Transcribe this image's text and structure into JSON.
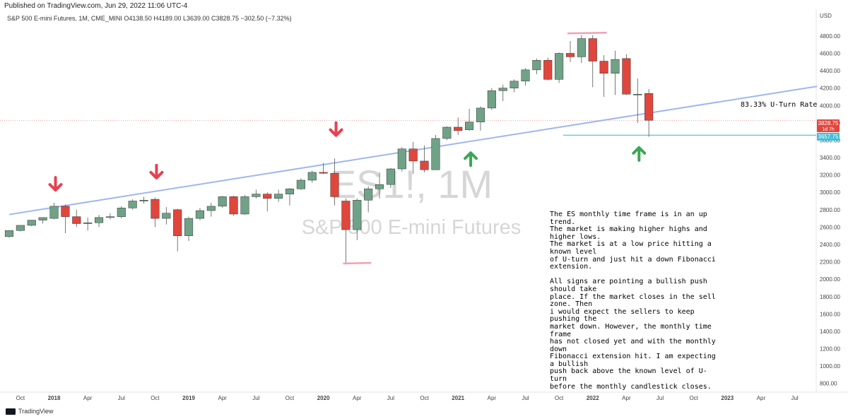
{
  "header": {
    "published": "Published on TradingView.com, Jun 29, 2022 11:06 UTC-4",
    "symbol_line": "S&P 500 E-mini Futures, 1M, CME_MINI  O4138.50  H4189.00  L3639.00  C3828.75  −302.50 (−7.32%)"
  },
  "footer": {
    "brand": "TradingView"
  },
  "watermark": {
    "ticker": "ES1!, 1M",
    "name": "S&P 500 E-mini Futures"
  },
  "annotation": {
    "uturn_label": "83.33% U-Turn Rate",
    "text": "The ES monthly time frame is in an up trend.\nThe market is making higher highs and higher lows.\nThe market is at a low price hitting a known level\nof U-turn and just hit a down Fibonacci extension.\n\nAll signs are pointing a bullish push should take\nplace. If the market closes in the sell zone. Then\ni would expect the sellers to keep pushing the\nmarket down. However, the monthly time frame\nhas not closed yet and with the monthly down\nFibonacci extension hit. I am expecting a bullish\npush back above the known level of U-turn\nbefore the monthly candlestick closes."
  },
  "price_tags": {
    "last": "3828.75",
    "countdown": "1d 7h",
    "level": "3657.75"
  },
  "colors": {
    "up": "#6fa287",
    "down": "#e0463c",
    "trendline": "#9fb6f0",
    "level_line": "#3fbfd9",
    "arrow_down": "#e8404f",
    "arrow_up": "#3aa655",
    "marker": "#f2a0b4"
  },
  "chart_data": {
    "type": "candlestick",
    "title": "S&P 500 E-mini Futures, 1M, CME_MINI",
    "ylabel": "USD",
    "ylim": [
      700,
      5100
    ],
    "y_ticks": [
      800,
      1000,
      1200,
      1400,
      1600,
      1800,
      2000,
      2200,
      2400,
      2600,
      2800,
      3000,
      3200,
      3400,
      3600,
      3800,
      4000,
      4200,
      4400,
      4600,
      4800
    ],
    "x_ticks": [
      {
        "label": "Oct",
        "date": "2017-10",
        "bold": false
      },
      {
        "label": "2018",
        "date": "2018-01",
        "bold": true
      },
      {
        "label": "Apr",
        "date": "2018-04",
        "bold": false
      },
      {
        "label": "Jul",
        "date": "2018-07",
        "bold": false
      },
      {
        "label": "Oct",
        "date": "2018-10",
        "bold": false
      },
      {
        "label": "2019",
        "date": "2019-01",
        "bold": true
      },
      {
        "label": "Apr",
        "date": "2019-04",
        "bold": false
      },
      {
        "label": "Jul",
        "date": "2019-07",
        "bold": false
      },
      {
        "label": "Oct",
        "date": "2019-10",
        "bold": false
      },
      {
        "label": "2020",
        "date": "2020-01",
        "bold": true
      },
      {
        "label": "Apr",
        "date": "2020-04",
        "bold": false
      },
      {
        "label": "Jul",
        "date": "2020-07",
        "bold": false
      },
      {
        "label": "Oct",
        "date": "2020-10",
        "bold": false
      },
      {
        "label": "2021",
        "date": "2021-01",
        "bold": true
      },
      {
        "label": "Apr",
        "date": "2021-04",
        "bold": false
      },
      {
        "label": "Jul",
        "date": "2021-07",
        "bold": false
      },
      {
        "label": "Oct",
        "date": "2021-10",
        "bold": false
      },
      {
        "label": "2022",
        "date": "2022-01",
        "bold": true
      },
      {
        "label": "Apr",
        "date": "2022-04",
        "bold": false
      },
      {
        "label": "Jul",
        "date": "2022-07",
        "bold": false
      },
      {
        "label": "Oct",
        "date": "2022-10",
        "bold": false
      },
      {
        "label": "2023",
        "date": "2023-01",
        "bold": true
      },
      {
        "label": "Apr",
        "date": "2023-04",
        "bold": false
      },
      {
        "label": "Jul",
        "date": "2023-07",
        "bold": false
      }
    ],
    "candles": [
      {
        "date": "2017-09",
        "o": 2490,
        "h": 2520,
        "l": 2480,
        "c": 2560
      },
      {
        "date": "2017-10",
        "o": 2560,
        "h": 2580,
        "l": 2550,
        "c": 2620
      },
      {
        "date": "2017-11",
        "o": 2620,
        "h": 2660,
        "l": 2610,
        "c": 2680
      },
      {
        "date": "2017-12",
        "o": 2680,
        "h": 2700,
        "l": 2640,
        "c": 2710
      },
      {
        "date": "2018-01",
        "o": 2700,
        "h": 2880,
        "l": 2690,
        "c": 2840
      },
      {
        "date": "2018-02",
        "o": 2840,
        "h": 2860,
        "l": 2530,
        "c": 2720
      },
      {
        "date": "2018-03",
        "o": 2720,
        "h": 2800,
        "l": 2600,
        "c": 2640
      },
      {
        "date": "2018-04",
        "o": 2640,
        "h": 2710,
        "l": 2560,
        "c": 2650
      },
      {
        "date": "2018-05",
        "o": 2650,
        "h": 2740,
        "l": 2600,
        "c": 2710
      },
      {
        "date": "2018-06",
        "o": 2710,
        "h": 2760,
        "l": 2690,
        "c": 2720
      },
      {
        "date": "2018-07",
        "o": 2720,
        "h": 2840,
        "l": 2700,
        "c": 2820
      },
      {
        "date": "2018-08",
        "o": 2820,
        "h": 2920,
        "l": 2800,
        "c": 2900
      },
      {
        "date": "2018-09",
        "o": 2900,
        "h": 2950,
        "l": 2870,
        "c": 2910
      },
      {
        "date": "2018-10",
        "o": 2920,
        "h": 2940,
        "l": 2600,
        "c": 2700
      },
      {
        "date": "2018-11",
        "o": 2700,
        "h": 2830,
        "l": 2630,
        "c": 2760
      },
      {
        "date": "2018-12",
        "o": 2800,
        "h": 2810,
        "l": 2320,
        "c": 2500
      },
      {
        "date": "2019-01",
        "o": 2500,
        "h": 2720,
        "l": 2440,
        "c": 2700
      },
      {
        "date": "2019-02",
        "o": 2700,
        "h": 2820,
        "l": 2680,
        "c": 2790
      },
      {
        "date": "2019-03",
        "o": 2790,
        "h": 2880,
        "l": 2720,
        "c": 2840
      },
      {
        "date": "2019-04",
        "o": 2840,
        "h": 2960,
        "l": 2820,
        "c": 2950
      },
      {
        "date": "2019-05",
        "o": 2950,
        "h": 2960,
        "l": 2730,
        "c": 2750
      },
      {
        "date": "2019-06",
        "o": 2750,
        "h": 2970,
        "l": 2740,
        "c": 2950
      },
      {
        "date": "2019-07",
        "o": 2950,
        "h": 3030,
        "l": 2930,
        "c": 2980
      },
      {
        "date": "2019-08",
        "o": 2980,
        "h": 3000,
        "l": 2780,
        "c": 2930
      },
      {
        "date": "2019-09",
        "o": 2930,
        "h": 3030,
        "l": 2890,
        "c": 2980
      },
      {
        "date": "2019-10",
        "o": 2980,
        "h": 3050,
        "l": 2850,
        "c": 3040
      },
      {
        "date": "2019-11",
        "o": 3040,
        "h": 3160,
        "l": 3030,
        "c": 3140
      },
      {
        "date": "2019-12",
        "o": 3140,
        "h": 3250,
        "l": 3110,
        "c": 3230
      },
      {
        "date": "2020-01",
        "o": 3230,
        "h": 3340,
        "l": 3210,
        "c": 3220
      },
      {
        "date": "2020-02",
        "o": 3220,
        "h": 3390,
        "l": 2850,
        "c": 2950
      },
      {
        "date": "2020-03",
        "o": 2900,
        "h": 2930,
        "l": 2190,
        "c": 2570
      },
      {
        "date": "2020-04",
        "o": 2570,
        "h": 2930,
        "l": 2450,
        "c": 2910
      },
      {
        "date": "2020-05",
        "o": 2910,
        "h": 3070,
        "l": 2770,
        "c": 3040
      },
      {
        "date": "2020-06",
        "o": 3040,
        "h": 3230,
        "l": 2930,
        "c": 3090
      },
      {
        "date": "2020-07",
        "o": 3090,
        "h": 3280,
        "l": 3050,
        "c": 3270
      },
      {
        "date": "2020-08",
        "o": 3270,
        "h": 3520,
        "l": 3240,
        "c": 3500
      },
      {
        "date": "2020-09",
        "o": 3500,
        "h": 3580,
        "l": 3210,
        "c": 3360
      },
      {
        "date": "2020-10",
        "o": 3360,
        "h": 3540,
        "l": 3230,
        "c": 3260
      },
      {
        "date": "2020-11",
        "o": 3260,
        "h": 3660,
        "l": 3260,
        "c": 3620
      },
      {
        "date": "2020-12",
        "o": 3620,
        "h": 3760,
        "l": 3600,
        "c": 3750
      },
      {
        "date": "2021-01",
        "o": 3750,
        "h": 3860,
        "l": 3660,
        "c": 3710
      },
      {
        "date": "2021-02",
        "o": 3720,
        "h": 3960,
        "l": 3710,
        "c": 3810
      },
      {
        "date": "2021-03",
        "o": 3810,
        "h": 3990,
        "l": 3710,
        "c": 3970
      },
      {
        "date": "2021-04",
        "o": 3970,
        "h": 4200,
        "l": 3950,
        "c": 4170
      },
      {
        "date": "2021-05",
        "o": 4170,
        "h": 4240,
        "l": 4050,
        "c": 4200
      },
      {
        "date": "2021-06",
        "o": 4200,
        "h": 4300,
        "l": 4150,
        "c": 4280
      },
      {
        "date": "2021-07",
        "o": 4280,
        "h": 4430,
        "l": 4230,
        "c": 4410
      },
      {
        "date": "2021-08",
        "o": 4410,
        "h": 4540,
        "l": 4360,
        "c": 4520
      },
      {
        "date": "2021-09",
        "o": 4520,
        "h": 4550,
        "l": 4290,
        "c": 4300
      },
      {
        "date": "2021-10",
        "o": 4300,
        "h": 4610,
        "l": 4260,
        "c": 4600
      },
      {
        "date": "2021-11",
        "o": 4600,
        "h": 4740,
        "l": 4500,
        "c": 4560
      },
      {
        "date": "2021-12",
        "o": 4560,
        "h": 4810,
        "l": 4490,
        "c": 4770
      },
      {
        "date": "2022-01",
        "o": 4770,
        "h": 4810,
        "l": 4210,
        "c": 4510
      },
      {
        "date": "2022-02",
        "o": 4510,
        "h": 4580,
        "l": 4100,
        "c": 4370
      },
      {
        "date": "2022-03",
        "o": 4370,
        "h": 4630,
        "l": 4120,
        "c": 4530
      },
      {
        "date": "2022-04",
        "o": 4540,
        "h": 4590,
        "l": 4120,
        "c": 4130
      },
      {
        "date": "2022-05",
        "o": 4130,
        "h": 4310,
        "l": 3800,
        "c": 4130
      },
      {
        "date": "2022-06",
        "o": 4138.5,
        "h": 4189,
        "l": 3639,
        "c": 3828.75
      }
    ],
    "trendline": {
      "start": {
        "date": "2017-09",
        "value": 2745
      },
      "end": {
        "date": "2023-09",
        "value": 4220
      }
    },
    "level_line": {
      "value": 3657.75,
      "from": "2021-10"
    },
    "pink_markers": [
      {
        "value": 4830,
        "from": "2021-11",
        "to": "2022-02"
      },
      {
        "value": 2180,
        "from": "2020-03",
        "to": "2020-05"
      }
    ],
    "arrows": [
      {
        "direction": "down",
        "date": "2018-01",
        "value": 3090
      },
      {
        "direction": "down",
        "date": "2018-10",
        "value": 3230
      },
      {
        "direction": "down",
        "date": "2020-02",
        "value": 3720
      },
      {
        "direction": "up",
        "date": "2021-02",
        "value": 3390
      },
      {
        "direction": "up",
        "date": "2022-05",
        "value": 3450
      }
    ]
  }
}
